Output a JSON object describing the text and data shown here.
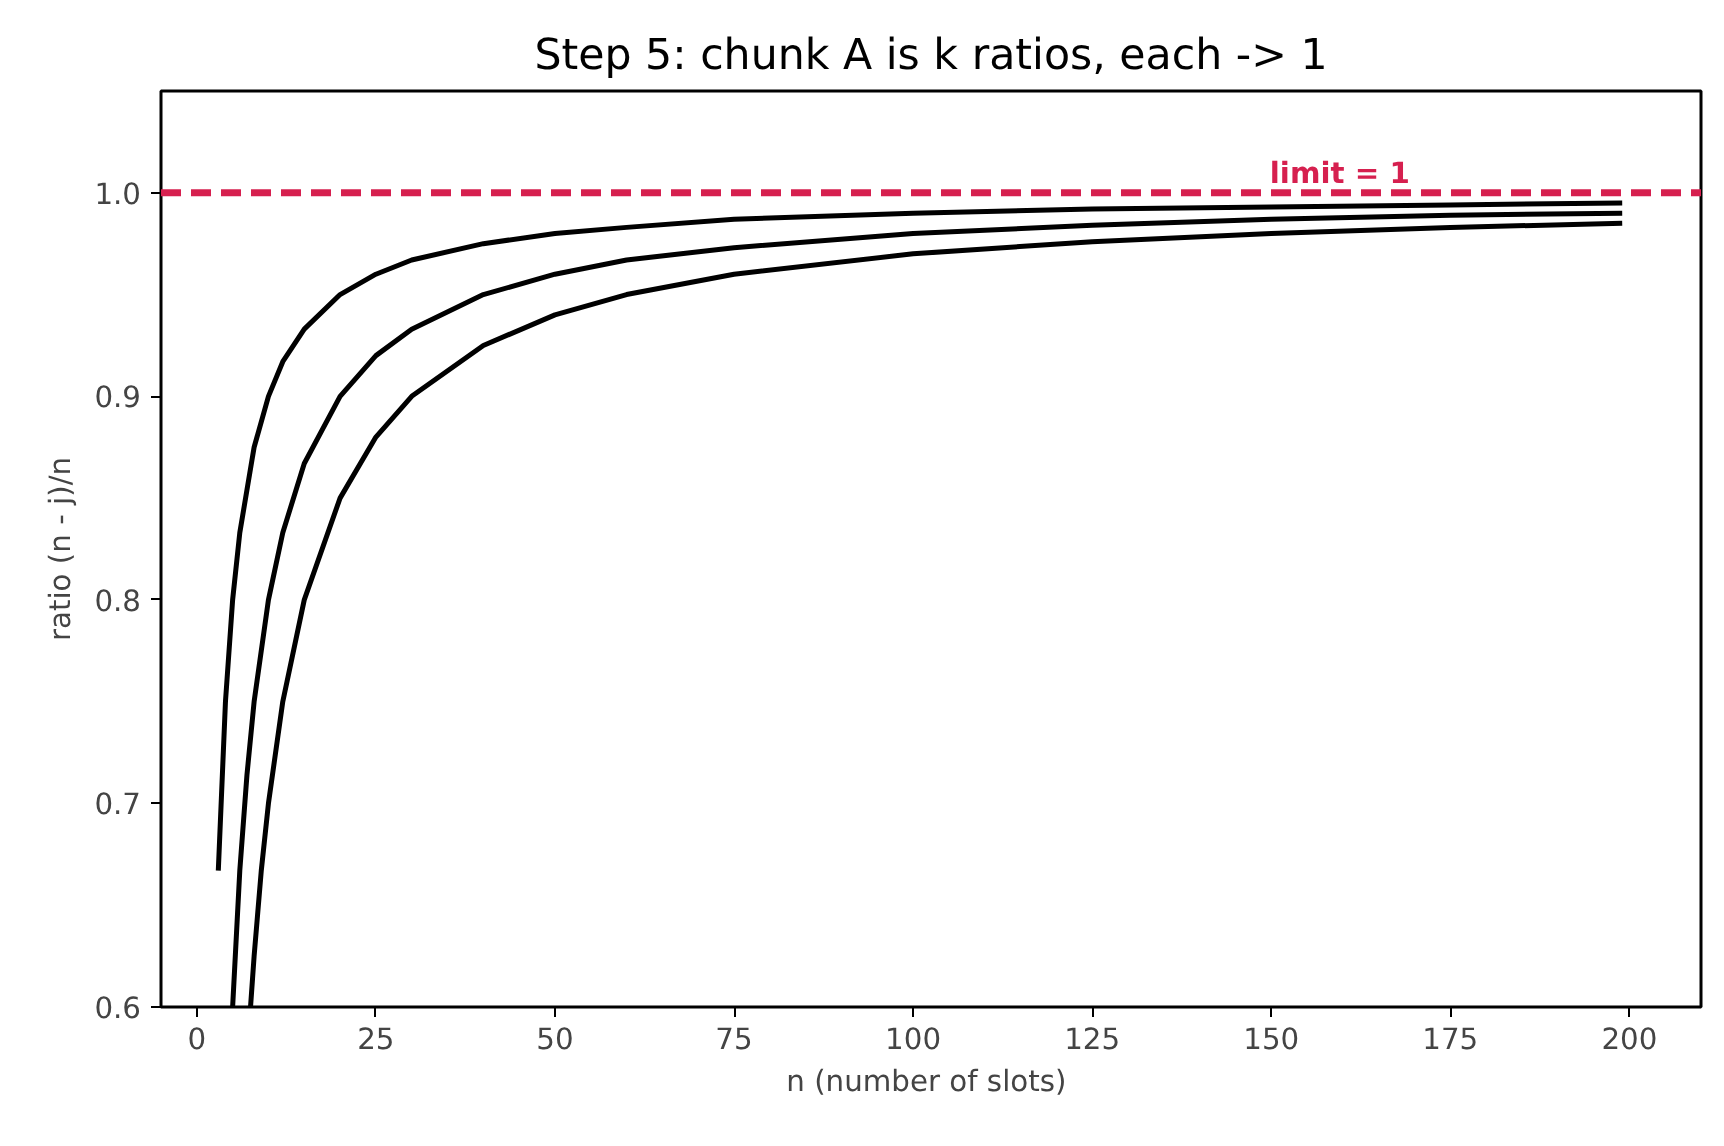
{
  "chart_data": {
    "type": "line",
    "title": "Step 5: chunk A is k ratios, each -> 1",
    "xlabel": "n  (number of slots)",
    "ylabel": "ratio (n - j)/n",
    "series": [
      {
        "color": "#000000",
        "x": [
          3,
          4,
          5,
          6,
          8,
          10,
          12,
          15,
          20,
          25,
          30,
          40,
          50,
          60,
          75,
          100,
          125,
          150,
          175,
          199
        ],
        "values": [
          0.667,
          0.75,
          0.8,
          0.833,
          0.875,
          0.9,
          0.917,
          0.933,
          0.95,
          0.96,
          0.967,
          0.975,
          0.98,
          0.983,
          0.987,
          0.99,
          0.992,
          0.993,
          0.994,
          0.995
        ]
      },
      {
        "color": "#000000",
        "x": [
          5,
          6,
          7,
          8,
          10,
          12,
          15,
          20,
          25,
          30,
          40,
          50,
          60,
          75,
          100,
          125,
          150,
          175,
          199
        ],
        "values": [
          0.6,
          0.667,
          0.714,
          0.75,
          0.8,
          0.833,
          0.867,
          0.9,
          0.92,
          0.933,
          0.95,
          0.96,
          0.967,
          0.973,
          0.98,
          0.984,
          0.987,
          0.989,
          0.99
        ]
      },
      {
        "color": "#000000",
        "x": [
          7.5,
          8,
          9,
          10,
          12,
          15,
          20,
          25,
          30,
          40,
          50,
          60,
          75,
          100,
          125,
          150,
          175,
          199
        ],
        "values": [
          0.6,
          0.625,
          0.667,
          0.7,
          0.75,
          0.8,
          0.85,
          0.88,
          0.9,
          0.925,
          0.94,
          0.95,
          0.96,
          0.97,
          0.976,
          0.98,
          0.983,
          0.985
        ]
      }
    ],
    "xlim": [
      -5,
      210
    ],
    "xticks": [
      0,
      25,
      50,
      75,
      100,
      125,
      150,
      175,
      200
    ],
    "ylim": [
      0.6,
      1.05
    ],
    "yticks": [
      0.6,
      0.7,
      0.8,
      0.9,
      {
        "value": 1,
        "label": "1.0"
      }
    ],
    "ref_lines": [
      {
        "axis": "y",
        "value": 1,
        "label": "limit = 1",
        "color": "#d6204f",
        "line_style": "dashed"
      }
    ],
    "grid": false,
    "line_style": "solid",
    "marker": "none"
  }
}
